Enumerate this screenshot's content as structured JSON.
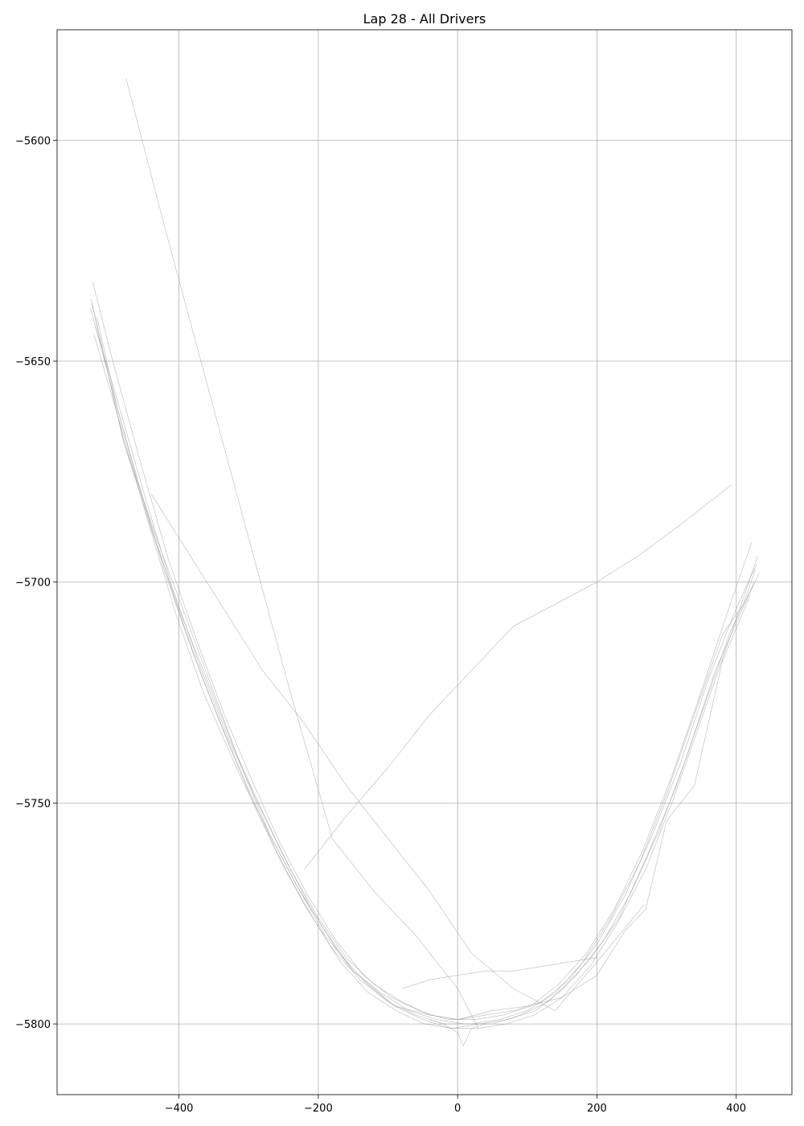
{
  "chart_data": {
    "type": "line",
    "title": "Lap 28 - All Drivers",
    "xlabel": "",
    "ylabel": "",
    "xlim": [
      -575,
      480
    ],
    "ylim": [
      -5816,
      -5575
    ],
    "x_ticks": [
      -400,
      -200,
      0,
      200,
      400
    ],
    "y_ticks": [
      -5600,
      -5650,
      -5700,
      -5750,
      -5800
    ],
    "x_tick_labels": [
      "−400",
      "−200",
      "0",
      "200",
      "400"
    ],
    "y_tick_labels": [
      "−5600",
      "−5650",
      "−5700",
      "−5750",
      "−5800"
    ],
    "grid": true,
    "legend": "none",
    "line_color": "#9a9a9a",
    "series": [
      {
        "x": [
          -527,
          -500,
          -460,
          -420,
          -380,
          -340,
          -300,
          -260,
          -220,
          -180,
          -140,
          -100,
          -60,
          -20,
          20,
          60,
          100,
          140,
          180,
          220,
          260,
          300,
          340,
          380,
          410,
          428
        ],
        "y": [
          -5638,
          -5654,
          -5677,
          -5698,
          -5716,
          -5732,
          -5747,
          -5761,
          -5773,
          -5783,
          -5790,
          -5795,
          -5798,
          -5800,
          -5800,
          -5799,
          -5797,
          -5793,
          -5786,
          -5776,
          -5764,
          -5748,
          -5730,
          -5712,
          -5705,
          -5697
        ]
      },
      {
        "x": [
          -524,
          -495,
          -455,
          -415,
          -375,
          -335,
          -295,
          -255,
          -215,
          -175,
          -135,
          -95,
          -55,
          -15,
          25,
          65,
          105,
          145,
          185,
          225,
          265,
          305,
          345,
          385,
          422
        ],
        "y": [
          -5632,
          -5650,
          -5673,
          -5695,
          -5713,
          -5730,
          -5745,
          -5759,
          -5771,
          -5781,
          -5789,
          -5794,
          -5797,
          -5799,
          -5799,
          -5798,
          -5796,
          -5791,
          -5784,
          -5774,
          -5761,
          -5745,
          -5727,
          -5708,
          -5691
        ]
      },
      {
        "x": [
          -520,
          -490,
          -450,
          -410,
          -370,
          -330,
          -290,
          -250,
          -210,
          -170,
          -130,
          -90,
          -50,
          -10,
          30,
          70,
          110,
          150,
          190,
          230,
          270,
          310,
          350,
          390,
          431
        ],
        "y": [
          -5642,
          -5658,
          -5680,
          -5701,
          -5719,
          -5735,
          -5749,
          -5762,
          -5774,
          -5784,
          -5791,
          -5796,
          -5799,
          -5801,
          -5801,
          -5800,
          -5798,
          -5794,
          -5787,
          -5777,
          -5765,
          -5749,
          -5731,
          -5713,
          -5694
        ]
      },
      {
        "x": [
          -526,
          -480,
          -430,
          -390,
          -350,
          -310,
          -270,
          -230,
          -190,
          -150,
          -110,
          -70,
          -30,
          10,
          50,
          90,
          130,
          170,
          210,
          250,
          290,
          330,
          370,
          412,
          433
        ],
        "y": [
          -5636,
          -5668,
          -5691,
          -5708,
          -5725,
          -5742,
          -5757,
          -5769,
          -5780,
          -5788,
          -5793,
          -5797,
          -5799,
          -5800,
          -5800,
          -5798,
          -5795,
          -5789,
          -5781,
          -5770,
          -5756,
          -5739,
          -5720,
          -5705,
          -5698
        ]
      },
      {
        "x": [
          -522,
          -485,
          -445,
          -405,
          -365,
          -312,
          -270,
          -230,
          -190,
          -150,
          -90,
          -40,
          0,
          50,
          100,
          150,
          200,
          240,
          270,
          300,
          340,
          380,
          420
        ],
        "y": [
          -5644,
          -5664,
          -5686,
          -5707,
          -5725,
          -5744,
          -5757,
          -5769,
          -5779,
          -5788,
          -5796,
          -5798,
          -5799,
          -5797,
          -5796,
          -5794,
          -5789,
          -5779,
          -5774,
          -5754,
          -5746,
          -5718,
          -5703
        ]
      },
      {
        "x": [
          -518,
          -488,
          -448,
          -408,
          -368,
          -328,
          -288,
          -248,
          -208,
          -168,
          -128,
          -88,
          -48,
          -8,
          32,
          72,
          112,
          152,
          192,
          232,
          272,
          312,
          352,
          392,
          426
        ],
        "y": [
          -5640,
          -5661,
          -5683,
          -5703,
          -5721,
          -5737,
          -5752,
          -5765,
          -5776,
          -5786,
          -5793,
          -5797,
          -5800,
          -5801,
          -5800,
          -5799,
          -5797,
          -5792,
          -5785,
          -5776,
          -5762,
          -5747,
          -5729,
          -5711,
          -5700
        ]
      },
      {
        "x": [
          -525,
          -478,
          -440,
          -400,
          -360,
          -320,
          -280,
          -240,
          -200,
          -160,
          -120,
          -80,
          -40,
          0,
          40,
          80,
          120,
          160,
          200,
          240,
          280,
          320,
          360,
          400,
          429
        ],
        "y": [
          -5637,
          -5669,
          -5688,
          -5706,
          -5722,
          -5738,
          -5752,
          -5765,
          -5776,
          -5785,
          -5791,
          -5795,
          -5798,
          -5799,
          -5798,
          -5797,
          -5795,
          -5790,
          -5782,
          -5771,
          -5757,
          -5741,
          -5722,
          -5706,
          -5696
        ]
      },
      {
        "x": [
          -476,
          -420,
          -360,
          -300,
          -240,
          -180,
          -120,
          -60,
          0,
          30
        ],
        "y": [
          -5586,
          -5620,
          -5655,
          -5690,
          -5725,
          -5758,
          -5770,
          -5780,
          -5792,
          -5801
        ]
      },
      {
        "x": [
          -440,
          -400,
          -340,
          -280,
          -220,
          -160,
          -100,
          -40,
          20,
          80,
          140,
          200,
          268
        ],
        "y": [
          -5680,
          -5690,
          -5705,
          -5720,
          -5732,
          -5746,
          -5758,
          -5770,
          -5784,
          -5792,
          -5797,
          -5786,
          -5773
        ]
      },
      {
        "x": [
          -220,
          -160,
          -100,
          -40,
          20,
          80,
          140,
          200,
          260,
          320,
          393
        ],
        "y": [
          -5765,
          -5753,
          -5742,
          -5730,
          -5720,
          -5710,
          -5705,
          -5700,
          -5694,
          -5687,
          -5678
        ]
      },
      {
        "x": [
          -80,
          -40,
          0,
          40,
          80,
          120,
          160,
          200
        ],
        "y": [
          -5792,
          -5790,
          -5789,
          -5788,
          -5788,
          -5787,
          -5786,
          -5785
        ]
      },
      {
        "x": [
          -40,
          -20,
          0,
          8,
          20,
          40
        ],
        "y": [
          -5799,
          -5800,
          -5802,
          -5805,
          -5801,
          -5800
        ]
      }
    ]
  }
}
